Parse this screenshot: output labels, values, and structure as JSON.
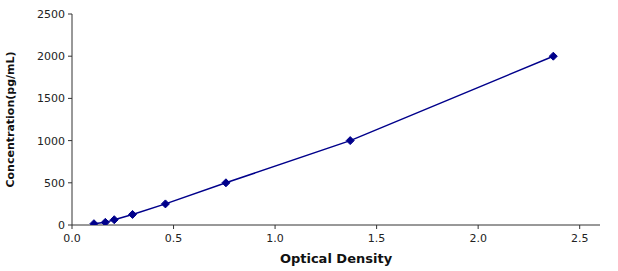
{
  "chart_data": {
    "type": "line",
    "x": [
      0.108,
      0.164,
      0.208,
      0.298,
      0.46,
      0.758,
      1.37,
      2.37
    ],
    "values": [
      15.6,
      31.25,
      62.5,
      125,
      250,
      500,
      1000,
      2000
    ],
    "color": "#00008B",
    "marker": "diamond",
    "line_style": "solid",
    "xlabel": "Optical Density",
    "ylabel": "Concentration(pg/mL)",
    "xlim": [
      0.0,
      2.6
    ],
    "ylim": [
      0,
      2500
    ],
    "xticks": [
      {
        "value": 0,
        "label": "0.0"
      },
      0.5,
      {
        "value": 1,
        "label": "1.0"
      },
      1.5,
      {
        "value": 2,
        "label": "2.0"
      },
      2.5
    ],
    "yticks": [
      0,
      500,
      1000,
      1500,
      2000,
      2500
    ],
    "grid": false
  }
}
